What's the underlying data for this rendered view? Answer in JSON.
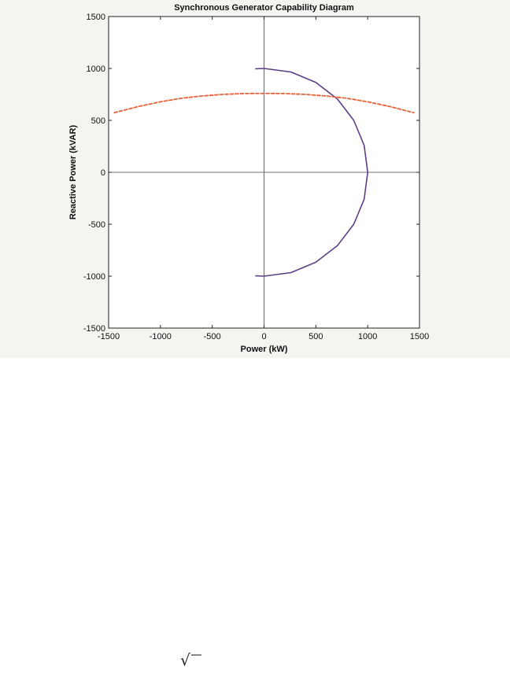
{
  "chart_data": {
    "type": "line",
    "title": "Synchronous Generator Capability Diagram",
    "xlabel": "Power (kW)",
    "ylabel": "Reactive Power (kVAR)",
    "xlim": [
      -1500,
      1500
    ],
    "ylim": [
      -1500,
      1500
    ],
    "xticks": [
      -1500,
      -1000,
      -500,
      0,
      500,
      1000,
      1500
    ],
    "yticks": [
      -1500,
      -1000,
      -500,
      0,
      500,
      1000,
      1500
    ],
    "grid": false,
    "zero_lines": true,
    "series": [
      {
        "style": "solid",
        "color": "#5b3f86",
        "points": [
          [
            -80,
            997
          ],
          [
            0,
            1000
          ],
          [
            259,
            966
          ],
          [
            500,
            866
          ],
          [
            707,
            707
          ],
          [
            866,
            500
          ],
          [
            966,
            259
          ],
          [
            1000,
            0
          ],
          [
            966,
            -259
          ],
          [
            866,
            -500
          ],
          [
            707,
            -707
          ],
          [
            500,
            -866
          ],
          [
            259,
            -966
          ],
          [
            0,
            -1000
          ],
          [
            -80,
            -997
          ]
        ]
      },
      {
        "style": "dashed",
        "color": "#e8603a",
        "points": [
          [
            -1445,
            574
          ],
          [
            -1200,
            636
          ],
          [
            -1000,
            679
          ],
          [
            -800,
            713
          ],
          [
            -600,
            735
          ],
          [
            -400,
            750
          ],
          [
            -200,
            758
          ],
          [
            0,
            760
          ],
          [
            200,
            758
          ],
          [
            400,
            750
          ],
          [
            600,
            735
          ],
          [
            800,
            713
          ],
          [
            1000,
            679
          ],
          [
            1200,
            636
          ],
          [
            1445,
            574
          ]
        ]
      }
    ]
  },
  "page_text": {
    "sqrt_symbol": "√"
  }
}
